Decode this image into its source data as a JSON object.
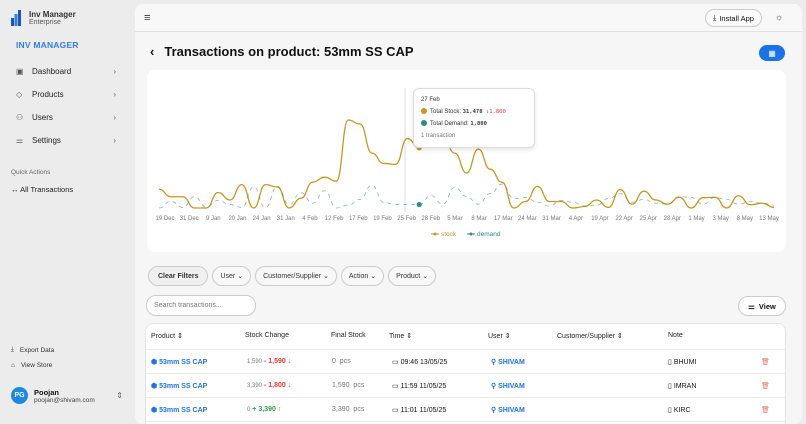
{
  "app": {
    "name": "Inv Manager",
    "edition": "Enterprise",
    "section": "INV MANAGER"
  },
  "sidebar": {
    "items": [
      {
        "label": "Dashboard",
        "icon": "dashboard-icon"
      },
      {
        "label": "Products",
        "icon": "tag-icon"
      },
      {
        "label": "Users",
        "icon": "users-icon"
      },
      {
        "label": "Settings",
        "icon": "sliders-icon"
      }
    ],
    "quick_actions_title": "Quick Actions",
    "quick_actions": [
      {
        "label": "All Transactions",
        "icon": "arrows-left-right-icon"
      }
    ],
    "footer_links": [
      {
        "label": "Export Data",
        "icon": "download-icon"
      },
      {
        "label": "View Store",
        "icon": "store-icon"
      }
    ],
    "user": {
      "initials": "PG",
      "name": "Poojan",
      "email": "poojan@shivam.com"
    }
  },
  "topbar": {
    "install_label": "Install App"
  },
  "page": {
    "title": "Transactions on product: 53mm SS CAP"
  },
  "chart_data": {
    "type": "line",
    "x_ticks": [
      "19 Dec",
      "31 Dec",
      "9 Jan",
      "20 Jan",
      "24 Jan",
      "31 Jan",
      "4 Feb",
      "12 Feb",
      "17 Feb",
      "19 Feb",
      "25 Feb",
      "28 Feb",
      "5 Mar",
      "8 Mar",
      "17 Mar",
      "24 Mar",
      "31 Mar",
      "4 Apr",
      "19 Apr",
      "22 Apr",
      "25 Apr",
      "28 Apr",
      "1 May",
      "3 May",
      "8 May",
      "13 May"
    ],
    "series": [
      {
        "name": "stock",
        "color": "#c9971c",
        "dash": false,
        "values": [
          9800,
          5900,
          5900,
          0,
          0,
          8100,
          4200,
          12200,
          0,
          12200,
          11000,
          0,
          5100,
          13500,
          16100,
          14000,
          46000,
          43900,
          28700,
          23300,
          22800,
          36300,
          31478,
          38900,
          37200,
          28700,
          18300,
          30800,
          20300,
          13500,
          0,
          3400,
          11300,
          3400,
          3400,
          0,
          800,
          4200,
          300,
          9600,
          2000,
          8800,
          4200,
          2000,
          5600,
          0,
          5400,
          5600,
          0,
          6400,
          1700,
          2500,
          300
        ]
      },
      {
        "name": "demand",
        "color": "#2a8f7f",
        "dash": true,
        "values": [
          0,
          3500,
          300,
          6000,
          500,
          4000,
          1800,
          300,
          11000,
          200,
          11200,
          1800,
          8000,
          2500,
          9000,
          0,
          1500,
          4500,
          12000,
          3000,
          1800,
          1800,
          1800,
          6500,
          2000,
          10800,
          6000,
          2000,
          7500,
          12500,
          5000,
          5500,
          3000,
          1000,
          4000,
          3000,
          1000,
          1500,
          5000,
          7500,
          3000,
          4500,
          2500,
          2000,
          6000,
          5500,
          2000,
          5500,
          4500,
          2000,
          3500,
          2500,
          1500
        ]
      }
    ],
    "legend": "bottom",
    "grid": false,
    "tooltip": {
      "date": "27 Feb",
      "stock_label": "Total Stock:",
      "stock_value": "31,478",
      "stock_change": "↓1,800",
      "demand_label": "Total Demand:",
      "demand_value": "1,800",
      "count": "1 transaction"
    }
  },
  "filters": {
    "clear": "Clear Filters",
    "items": [
      "User",
      "Customer/Supplier",
      "Action",
      "Product"
    ]
  },
  "search": {
    "placeholder": "Search transactions..."
  },
  "view_label": "View",
  "table": {
    "headers": [
      "Product",
      "Stock Change",
      "Final Stock",
      "Time",
      "User",
      "Customer/Supplier",
      "Note"
    ],
    "rows": [
      {
        "product": "53mm SS CAP",
        "before": "1,590",
        "sign": "-",
        "change": "1,590",
        "dir": "↓",
        "final": "0",
        "unit": "pcs",
        "time": "09:46 13/05/25",
        "user": "SHIVAM",
        "customer": "",
        "note": "BHUMI"
      },
      {
        "product": "53mm SS CAP",
        "before": "3,390",
        "sign": "-",
        "change": "1,800",
        "dir": "↓",
        "final": "1,590",
        "unit": "pcs",
        "time": "11:59 11/05/25",
        "user": "SHIVAM",
        "customer": "",
        "note": "IMRAN"
      },
      {
        "product": "53mm SS CAP",
        "before": "0",
        "sign": "+",
        "change": "3,390",
        "dir": "↑",
        "final": "3,390",
        "unit": "pcs",
        "time": "11:01 11/05/25",
        "user": "SHIVAM",
        "customer": "",
        "note": "KIRC"
      }
    ]
  }
}
